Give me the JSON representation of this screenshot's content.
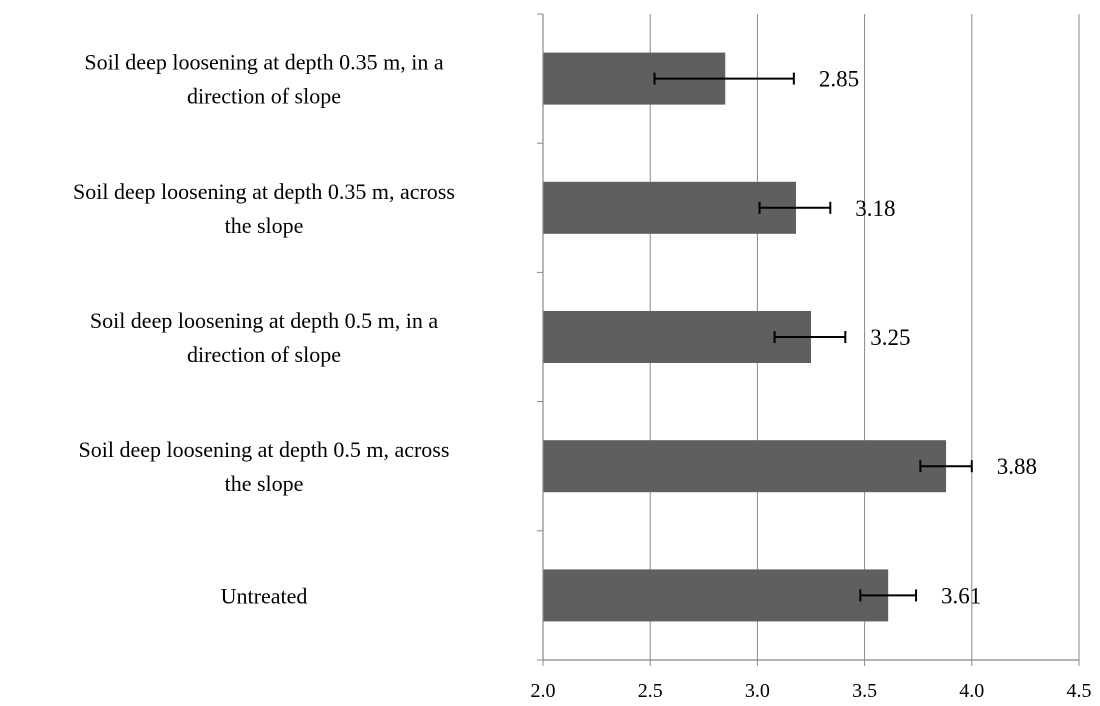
{
  "chart_data": {
    "type": "bar",
    "orientation": "horizontal",
    "title": "",
    "xlabel": "",
    "ylabel": "",
    "xlim": [
      2.0,
      4.5
    ],
    "x_ticks": [
      "2.0",
      "2.5",
      "3.0",
      "3.5",
      "4.0",
      "4.5"
    ],
    "grid": "vertical gridlines",
    "categories": [
      [
        "Soil deep loosening at depth 0.35 m, in a",
        "direction of slope"
      ],
      [
        "Soil deep loosening at depth 0.35 m, across",
        "the slope"
      ],
      [
        "Soil deep loosening at depth 0.5 m, in a",
        "direction of slope"
      ],
      [
        "Soil deep loosening at depth 0.5 m, across",
        "the slope"
      ],
      [
        "Untreated"
      ]
    ],
    "values": [
      2.85,
      3.18,
      3.25,
      3.88,
      3.61
    ],
    "value_labels": [
      "2.85",
      "3.18",
      "3.25",
      "3.88",
      "3.61"
    ],
    "error_low": [
      2.52,
      3.01,
      3.08,
      3.76,
      3.48
    ],
    "error_high": [
      3.17,
      3.34,
      3.41,
      4.0,
      3.74
    ],
    "colors": {
      "bar": "#5f5f5f",
      "grid": "#888888",
      "axis": "#888888",
      "error": "#000000"
    }
  }
}
